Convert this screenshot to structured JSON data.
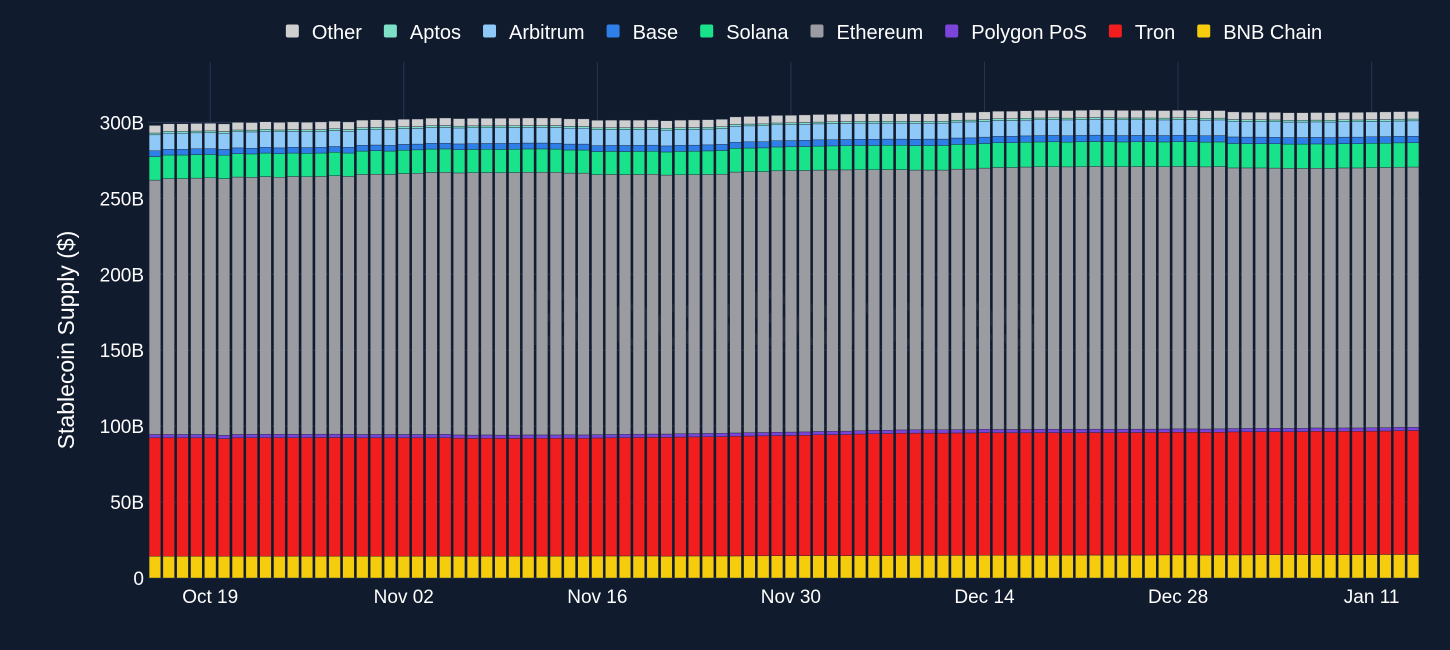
{
  "watermark": "BlockScholes",
  "chart_data": {
    "type": "bar",
    "stacked": true,
    "ylabel": "Stablecoin Supply ($)",
    "ylim": [
      0,
      320000000000
    ],
    "yticks": [
      {
        "value": 0,
        "label": "0"
      },
      {
        "value": 50000000000,
        "label": "50B"
      },
      {
        "value": 100000000000,
        "label": "100B"
      },
      {
        "value": 150000000000,
        "label": "150B"
      },
      {
        "value": 200000000000,
        "label": "200B"
      },
      {
        "value": 250000000000,
        "label": "250B"
      },
      {
        "value": 300000000000,
        "label": "300B"
      }
    ],
    "start_date": "2024-10-15",
    "num_bars": 92,
    "xticks": [
      {
        "index": 4,
        "label": "Oct 19"
      },
      {
        "index": 18,
        "label": "Nov 02"
      },
      {
        "index": 32,
        "label": "Nov 16"
      },
      {
        "index": 46,
        "label": "Nov 30"
      },
      {
        "index": 60,
        "label": "Dec 14"
      },
      {
        "index": 74,
        "label": "Dec 28"
      },
      {
        "index": 88,
        "label": "Jan 11"
      }
    ],
    "grid": true,
    "legend_position": "top",
    "legend": [
      "Other",
      "Aptos",
      "Arbitrum",
      "Base",
      "Solana",
      "Ethereum",
      "Polygon PoS",
      "Tron",
      "BNB Chain"
    ],
    "stack_order": [
      "BNB Chain",
      "Tron",
      "Polygon PoS",
      "Ethereum",
      "Solana",
      "Base",
      "Arbitrum",
      "Aptos",
      "Other"
    ],
    "colors": {
      "Other": "#cfcfcf",
      "Aptos": "#7fe0c8",
      "Arbitrum": "#8ec9f7",
      "Base": "#2f7fe8",
      "Solana": "#19e38a",
      "Ethereum": "#9a9ca2",
      "Polygon PoS": "#7b45d9",
      "Tron": "#f21d1d",
      "BNB Chain": "#f5cd0d"
    },
    "series": [
      {
        "name": "BNB Chain",
        "values": [
          14.3,
          14.3,
          14.3,
          14.3,
          14.3,
          14.3,
          14.3,
          14.3,
          14.3,
          14.3,
          14.4,
          14.4,
          14.4,
          14.4,
          14.4,
          14.3,
          14.3,
          14.3,
          14.3,
          14.4,
          14.3,
          14.4,
          14.4,
          14.3,
          14.4,
          14.3,
          14.3,
          14.4,
          14.4,
          14.4,
          14.4,
          14.4,
          14.5,
          14.5,
          14.5,
          14.5,
          14.5,
          14.4,
          14.5,
          14.5,
          14.5,
          14.5,
          14.5,
          14.6,
          14.6,
          14.7,
          14.7,
          14.7,
          14.8,
          14.8,
          14.7,
          14.8,
          14.8,
          14.8,
          14.9,
          14.9,
          14.9,
          14.9,
          14.9,
          14.9,
          15.0,
          15.0,
          15.0,
          15.0,
          15.1,
          15.0,
          15.1,
          15.1,
          15.1,
          15.1,
          15.1,
          15.1,
          15.1,
          15.2,
          15.2,
          15.2,
          15.1,
          15.2,
          15.2,
          15.2,
          15.3,
          15.3,
          15.3,
          15.3,
          15.4,
          15.3,
          15.4,
          15.4,
          15.4,
          15.5,
          15.5,
          15.5
        ]
      },
      {
        "name": "Tron",
        "values": [
          78.0,
          78.0,
          78.0,
          78.0,
          78.0,
          77.5,
          78.0,
          78.1,
          78.1,
          78.1,
          78.0,
          78.0,
          78.1,
          78.1,
          78.0,
          78.0,
          78.0,
          78.0,
          78.0,
          77.9,
          78.0,
          78.0,
          77.6,
          77.6,
          77.6,
          77.6,
          77.6,
          77.6,
          77.6,
          77.6,
          77.7,
          77.6,
          77.7,
          77.8,
          77.9,
          78.0,
          78.1,
          78.2,
          78.3,
          78.4,
          78.5,
          78.6,
          78.8,
          78.9,
          79.0,
          79.1,
          79.2,
          79.3,
          79.5,
          79.6,
          79.8,
          80.0,
          80.2,
          80.3,
          80.4,
          80.5,
          80.5,
          80.5,
          80.6,
          80.6,
          80.7,
          80.6,
          80.6,
          80.6,
          80.6,
          80.7,
          80.6,
          80.6,
          80.7,
          80.6,
          80.7,
          80.7,
          80.7,
          80.7,
          80.8,
          80.8,
          80.8,
          80.8,
          81.0,
          81.1,
          81.1,
          81.1,
          81.0,
          81.1,
          81.2,
          81.2,
          81.2,
          81.2,
          81.3,
          81.3,
          81.5,
          81.6
        ]
      },
      {
        "name": "Polygon PoS",
        "values": [
          2.2,
          2.2,
          2.2,
          2.2,
          2.2,
          2.2,
          2.2,
          2.2,
          2.2,
          2.2,
          2.2,
          2.2,
          2.2,
          2.2,
          2.2,
          2.2,
          2.2,
          2.2,
          2.2,
          2.2,
          2.2,
          2.2,
          2.2,
          2.2,
          2.2,
          2.2,
          2.2,
          2.2,
          2.2,
          2.2,
          2.2,
          2.2,
          2.2,
          2.2,
          2.2,
          2.2,
          2.2,
          2.2,
          2.2,
          2.2,
          2.2,
          2.2,
          2.2,
          2.2,
          2.2,
          2.2,
          2.2,
          2.2,
          2.2,
          2.2,
          2.2,
          2.2,
          2.2,
          2.2,
          2.2,
          2.2,
          2.2,
          2.2,
          2.2,
          2.2,
          2.2,
          2.2,
          2.2,
          2.2,
          2.2,
          2.2,
          2.2,
          2.2,
          2.2,
          2.2,
          2.2,
          2.2,
          2.2,
          2.2,
          2.2,
          2.2,
          2.2,
          2.2,
          2.2,
          2.2,
          2.2,
          2.2,
          2.2,
          2.2,
          2.2,
          2.2,
          2.2,
          2.2,
          2.2,
          2.2,
          2.2,
          2.2
        ]
      },
      {
        "name": "Ethereum",
        "values": [
          167.5,
          168.5,
          168.5,
          168.8,
          169.0,
          169.0,
          169.5,
          169.2,
          169.7,
          169.3,
          169.8,
          169.6,
          169.7,
          170.2,
          169.8,
          171.2,
          171.4,
          171.2,
          171.8,
          172.0,
          172.5,
          172.5,
          172.5,
          172.8,
          172.8,
          172.8,
          172.9,
          173.0,
          173.0,
          173.0,
          172.3,
          172.4,
          171.2,
          171.2,
          171.0,
          171.0,
          171.0,
          170.5,
          170.5,
          170.5,
          170.5,
          170.6,
          171.8,
          171.8,
          171.8,
          172.1,
          172.1,
          172.1,
          172.1,
          172.1,
          172.0,
          171.8,
          171.6,
          171.6,
          171.4,
          171.0,
          171.0,
          171.0,
          171.5,
          171.6,
          172.0,
          172.5,
          172.5,
          172.8,
          172.9,
          172.9,
          172.8,
          172.9,
          173.0,
          173.0,
          172.8,
          172.9,
          172.9,
          172.7,
          172.8,
          172.8,
          172.6,
          172.7,
          171.6,
          171.5,
          171.4,
          171.3,
          171.2,
          171.1,
          171.0,
          171.0,
          171.2,
          171.2,
          171.3,
          171.3,
          171.3,
          171.3
        ]
      },
      {
        "name": "Solana",
        "values": [
          15.5,
          15.5,
          15.5,
          15.5,
          15.4,
          15.4,
          15.4,
          15.4,
          15.5,
          15.5,
          15.4,
          15.4,
          15.4,
          15.4,
          15.4,
          15.4,
          15.4,
          15.4,
          15.4,
          15.4,
          15.4,
          15.4,
          15.3,
          15.3,
          15.3,
          15.3,
          15.3,
          15.3,
          15.3,
          15.2,
          15.2,
          15.2,
          15.2,
          15.2,
          15.2,
          15.2,
          15.2,
          15.2,
          15.4,
          15.4,
          15.5,
          15.6,
          15.6,
          15.6,
          15.6,
          15.7,
          15.7,
          15.8,
          15.8,
          15.8,
          15.9,
          16.0,
          16.0,
          16.0,
          16.0,
          16.1,
          16.2,
          16.2,
          16.3,
          16.3,
          16.2,
          16.3,
          16.3,
          16.3,
          16.3,
          16.4,
          16.3,
          16.4,
          16.4,
          16.4,
          16.3,
          16.3,
          16.3,
          16.3,
          16.3,
          16.3,
          16.3,
          16.2,
          16.1,
          16.0,
          16.0,
          16.0,
          16.0,
          16.0,
          16.0,
          16.0,
          16.0,
          16.0,
          16.0,
          16.0,
          16.0,
          16.0
        ]
      },
      {
        "name": "Base",
        "values": [
          3.8,
          3.8,
          3.8,
          3.8,
          3.8,
          3.8,
          3.8,
          3.8,
          3.8,
          3.8,
          3.8,
          3.8,
          3.8,
          3.8,
          3.8,
          3.8,
          3.8,
          3.8,
          3.8,
          3.8,
          3.8,
          3.8,
          3.8,
          3.8,
          3.8,
          3.9,
          3.9,
          3.9,
          3.9,
          3.9,
          3.9,
          3.9,
          3.9,
          3.9,
          4.0,
          4.0,
          4.0,
          4.0,
          4.0,
          4.0,
          4.0,
          4.0,
          4.0,
          4.1,
          4.1,
          4.1,
          4.1,
          4.1,
          4.1,
          4.1,
          4.1,
          4.1,
          4.1,
          4.1,
          4.1,
          4.2,
          4.2,
          4.2,
          4.2,
          4.2,
          4.2,
          4.2,
          4.2,
          4.2,
          4.2,
          4.2,
          4.2,
          4.2,
          4.2,
          4.2,
          4.2,
          4.2,
          4.2,
          4.2,
          4.2,
          4.2,
          4.2,
          4.2,
          4.3,
          4.3,
          4.3,
          4.3,
          4.3,
          4.3,
          4.3,
          4.3,
          4.3,
          4.3,
          4.3,
          4.3,
          4.3,
          4.3
        ]
      },
      {
        "name": "Arbitrum",
        "values": [
          10.5,
          10.6,
          10.6,
          10.5,
          10.5,
          10.6,
          10.6,
          10.7,
          10.6,
          10.6,
          10.5,
          10.5,
          10.5,
          10.5,
          10.5,
          10.4,
          10.4,
          10.4,
          10.4,
          10.3,
          10.4,
          10.4,
          10.5,
          10.5,
          10.4,
          10.4,
          10.4,
          10.3,
          10.3,
          10.4,
          10.4,
          10.4,
          10.5,
          10.5,
          10.5,
          10.4,
          10.4,
          10.4,
          10.4,
          10.4,
          10.4,
          10.4,
          10.5,
          10.5,
          10.5,
          10.5,
          10.5,
          10.5,
          10.5,
          10.6,
          10.6,
          10.6,
          10.6,
          10.5,
          10.5,
          10.5,
          10.5,
          10.5,
          10.5,
          10.5,
          10.4,
          10.4,
          10.4,
          10.4,
          10.4,
          10.4,
          10.4,
          10.4,
          10.4,
          10.4,
          10.4,
          10.3,
          10.3,
          10.3,
          10.3,
          10.3,
          10.3,
          10.3,
          10.3,
          10.2,
          10.2,
          10.2,
          10.2,
          10.2,
          10.2,
          10.2,
          10.2,
          10.1,
          10.1,
          10.1,
          10.1,
          10.1
        ]
      },
      {
        "name": "Aptos",
        "values": [
          1.2,
          1.2,
          1.2,
          1.2,
          1.2,
          1.2,
          1.2,
          1.2,
          1.2,
          1.2,
          1.2,
          1.2,
          1.2,
          1.2,
          1.2,
          1.2,
          1.2,
          1.2,
          1.2,
          1.2,
          1.2,
          1.2,
          1.2,
          1.2,
          1.2,
          1.2,
          1.2,
          1.2,
          1.2,
          1.2,
          1.2,
          1.2,
          1.2,
          1.2,
          1.2,
          1.2,
          1.2,
          1.2,
          1.2,
          1.2,
          1.2,
          1.2,
          1.2,
          1.2,
          1.2,
          1.2,
          1.2,
          1.2,
          1.2,
          1.2,
          1.2,
          1.2,
          1.2,
          1.2,
          1.2,
          1.2,
          1.2,
          1.2,
          1.2,
          1.2,
          1.2,
          1.2,
          1.2,
          1.2,
          1.2,
          1.2,
          1.2,
          1.2,
          1.2,
          1.2,
          1.2,
          1.2,
          1.2,
          1.2,
          1.2,
          1.2,
          1.2,
          1.2,
          1.2,
          1.2,
          1.2,
          1.2,
          1.2,
          1.2,
          1.2,
          1.2,
          1.2,
          1.2,
          1.2,
          1.2,
          1.2,
          1.2
        ]
      },
      {
        "name": "Other",
        "values": [
          5.0,
          5.0,
          5.0,
          5.0,
          5.0,
          5.0,
          5.0,
          5.0,
          5.0,
          5.0,
          5.0,
          5.0,
          5.0,
          5.0,
          5.0,
          5.0,
          5.0,
          5.0,
          5.0,
          5.0,
          5.0,
          5.0,
          5.0,
          5.0,
          5.0,
          5.0,
          5.0,
          5.0,
          5.0,
          5.0,
          5.0,
          5.0,
          5.0,
          5.0,
          5.0,
          5.0,
          5.0,
          5.0,
          5.0,
          5.0,
          5.0,
          5.0,
          5.0,
          5.0,
          5.0,
          5.0,
          5.0,
          5.0,
          5.0,
          5.0,
          5.0,
          5.0,
          5.0,
          5.0,
          5.0,
          5.0,
          5.0,
          5.0,
          5.0,
          5.0,
          5.0,
          5.0,
          5.0,
          5.0,
          5.0,
          5.0,
          5.0,
          5.0,
          5.0,
          5.0,
          5.0,
          5.0,
          5.0,
          5.0,
          5.0,
          5.0,
          5.0,
          5.0,
          5.0,
          5.0,
          5.0,
          5.0,
          5.0,
          5.0,
          5.0,
          5.0,
          5.0,
          5.0,
          5.0,
          5.0,
          5.0,
          5.0
        ]
      }
    ],
    "value_unit": "B"
  }
}
